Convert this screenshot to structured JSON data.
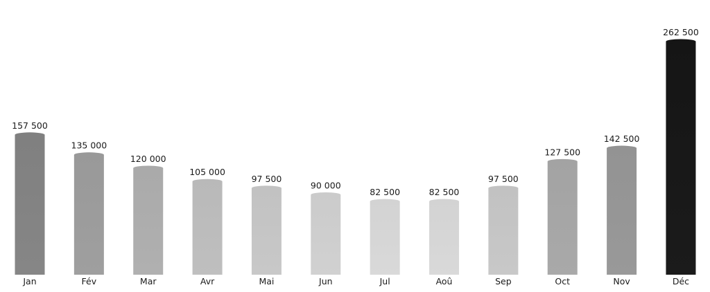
{
  "chart_data": {
    "type": "bar",
    "title": "",
    "xlabel": "",
    "ylabel": "",
    "categories": [
      "Jan",
      "Fév",
      "Mar",
      "Avr",
      "Mai",
      "Jun",
      "Jul",
      "Aoû",
      "Sep",
      "Oct",
      "Nov",
      "Déc"
    ],
    "values": [
      157500,
      135000,
      120000,
      105000,
      97500,
      90000,
      82500,
      82500,
      97500,
      127500,
      142500,
      262500
    ],
    "value_labels": [
      "157 500",
      "135 000",
      "120 000",
      "105 000",
      "97 500",
      "90 000",
      "82 500",
      "82 500",
      "97 500",
      "127 500",
      "142 500",
      "262 500"
    ],
    "colors": [
      "#808080",
      "#999999",
      "#aaaaaa",
      "#b9b9b9",
      "#c2c2c2",
      "#cbcbcb",
      "#d3d3d3",
      "#d3d3d3",
      "#c2c2c2",
      "#a3a3a3",
      "#939393",
      "#151515"
    ],
    "ylim": [
      0,
      262500
    ],
    "grid": false,
    "legend": "none",
    "axes_visible": false
  }
}
